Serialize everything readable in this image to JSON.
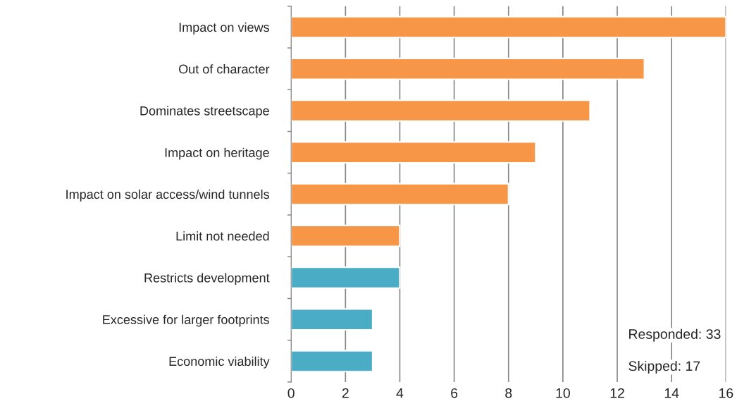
{
  "chart_data": {
    "type": "bar",
    "orientation": "horizontal",
    "categories": [
      "Impact on views",
      "Out of character",
      "Dominates streetscape",
      "Impact on heritage",
      "Impact on solar access/wind tunnels",
      "Limit not needed",
      "Restricts development",
      "Excessive for larger footprints",
      "Economic viability"
    ],
    "values": [
      16,
      13,
      11,
      9,
      8,
      4,
      4,
      3,
      3
    ],
    "colors": [
      "#f79646",
      "#f79646",
      "#f79646",
      "#f79646",
      "#f79646",
      "#f79646",
      "#4bacc6",
      "#4bacc6",
      "#4bacc6"
    ],
    "xlim": [
      0,
      16
    ],
    "xticks": [
      0,
      2,
      4,
      6,
      8,
      10,
      12,
      14,
      16
    ],
    "grid": "x",
    "annotations": [
      "Responded: 33",
      "Skipped: 17"
    ]
  }
}
